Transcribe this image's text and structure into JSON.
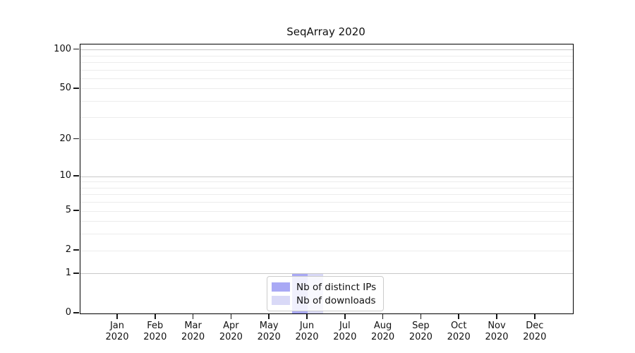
{
  "chart_data": {
    "type": "bar",
    "title": "SeqArray 2020",
    "categories": [
      [
        "Jan",
        "2020"
      ],
      [
        "Feb",
        "2020"
      ],
      [
        "Mar",
        "2020"
      ],
      [
        "Apr",
        "2020"
      ],
      [
        "May",
        "2020"
      ],
      [
        "Jun",
        "2020"
      ],
      [
        "Jul",
        "2020"
      ],
      [
        "Aug",
        "2020"
      ],
      [
        "Sep",
        "2020"
      ],
      [
        "Oct",
        "2020"
      ],
      [
        "Nov",
        "2020"
      ],
      [
        "Dec",
        "2020"
      ]
    ],
    "series": [
      {
        "name": "Nb of distinct IPs",
        "color": "#a9a9f5",
        "values": [
          0,
          0,
          0,
          0,
          0,
          1,
          0,
          0,
          0,
          0,
          0,
          0
        ]
      },
      {
        "name": "Nb of downloads",
        "color": "#d9d9f7",
        "values": [
          0,
          0,
          0,
          0,
          0,
          1,
          0,
          0,
          0,
          0,
          0,
          0
        ]
      }
    ],
    "y_scale": "log1p",
    "ylim": [
      0,
      110
    ],
    "y_ticks": [
      0,
      1,
      2,
      5,
      10,
      20,
      50,
      100
    ],
    "major_gridlines": [
      1,
      10,
      100
    ],
    "minor_gridlines": [
      2,
      3,
      4,
      5,
      6,
      7,
      8,
      9,
      20,
      30,
      40,
      50,
      60,
      70,
      80,
      90
    ],
    "grid": true,
    "legend_position": "bottom-center",
    "colors": {
      "axis": "#000000",
      "major_grid": "#c8c8c8",
      "minor_grid": "#ececec",
      "legend_border": "#cccccc"
    }
  }
}
